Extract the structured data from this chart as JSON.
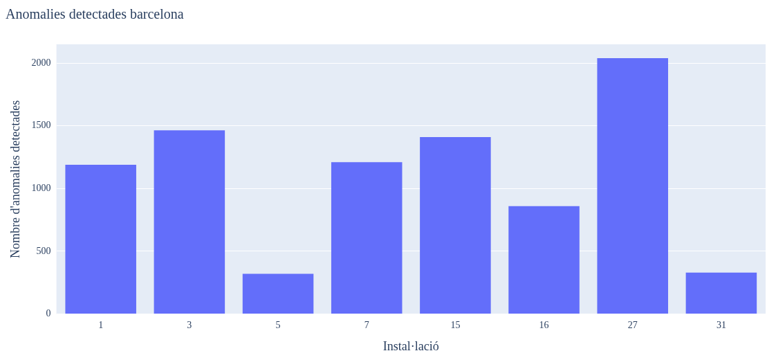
{
  "chart_data": {
    "type": "bar",
    "title": "Anomalies detectades barcelona",
    "xlabel": "Instal·lació",
    "ylabel": "Nombre d'anomalies detectades",
    "categories": [
      "1",
      "3",
      "5",
      "7",
      "15",
      "16",
      "27",
      "31"
    ],
    "values": [
      1190,
      1465,
      320,
      1210,
      1410,
      860,
      2040,
      330
    ],
    "color": "#636efa",
    "ylim": [
      0,
      2150
    ],
    "yticks": [
      0,
      500,
      1000,
      1500,
      2000
    ],
    "grid": "y"
  }
}
